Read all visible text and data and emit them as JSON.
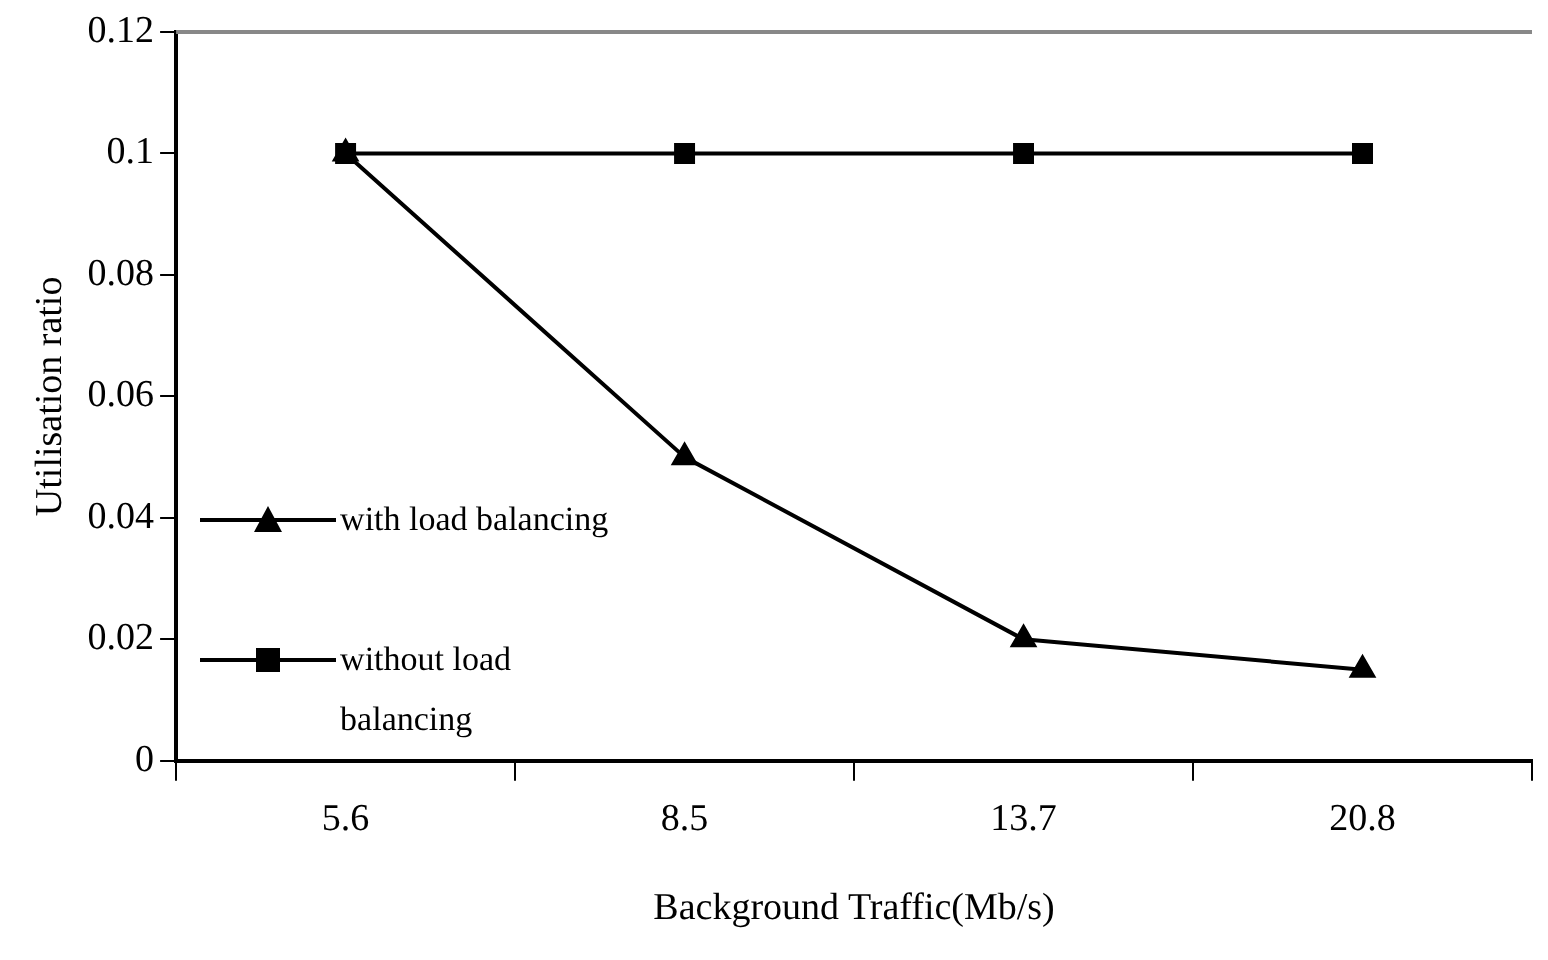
{
  "chart_data": {
    "type": "line",
    "xlabel": "Background Traffic(Mb/s)",
    "ylabel": "Utilisation ratio",
    "categories": [
      "5.6",
      "8.5",
      "13.7",
      "20.8"
    ],
    "series": [
      {
        "name": "with load balancing",
        "color": "#000000",
        "marker": "triangle",
        "values": [
          0.1,
          0.05,
          0.02,
          0.015
        ]
      },
      {
        "name": "without load balancing",
        "color": "#000000",
        "marker": "square",
        "values": [
          0.1,
          0.1,
          0.1,
          0.1
        ]
      }
    ],
    "ylim": [
      0,
      0.12
    ],
    "yticks": [
      0,
      0.02,
      0.04,
      0.06,
      0.08,
      0.1,
      0.12
    ],
    "grid": false,
    "legend": "left",
    "line_style": "solid"
  }
}
